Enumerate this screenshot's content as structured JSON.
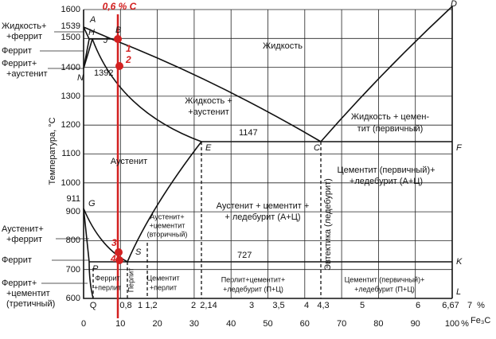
{
  "y_axis": {
    "title": "Температура, °С",
    "ticks": [
      "1600",
      "1539",
      "1500",
      "1400",
      "1300",
      "1200",
      "1100",
      "1000",
      "911",
      "900",
      "800",
      "700",
      "600"
    ]
  },
  "x_axis_carbon": {
    "ticks": [
      "Q",
      "0,8",
      "1",
      "1,2",
      "2",
      "2,14",
      "3",
      "3,5",
      "4",
      "4,3",
      "5",
      "6",
      "6,67",
      "7"
    ],
    "unit": "%"
  },
  "x_axis_fe3c": {
    "ticks": [
      "0",
      "10",
      "20",
      "30",
      "40",
      "50",
      "60",
      "70",
      "80",
      "90",
      "100"
    ],
    "unit": "%",
    "label": "Fe₃C"
  },
  "points": [
    "A",
    "B",
    "H",
    "J",
    "N",
    "D",
    "E",
    "C",
    "F",
    "G",
    "P",
    "S",
    "K",
    "L"
  ],
  "isotherms": [
    "1392",
    "1147",
    "727"
  ],
  "regions": [
    [
      "Жидкость"
    ],
    [
      "Жидкость +",
      "+аустенит"
    ],
    [
      "Жидкость + цемен-",
      "тит (первичный)"
    ],
    [
      "Аустенит"
    ],
    [
      "Цементит (первичный)+",
      "+ледебурит (А+Ц)"
    ],
    [
      "Аустенит + цементит +",
      "+ ледебурит (А+Ц)"
    ],
    [
      "Эвтектика (ледебурит)"
    ],
    [
      "Аустенит+",
      "+цементит",
      "(вторичный)"
    ],
    [
      "Феррит",
      "+перлит"
    ],
    [
      "Перлит"
    ],
    [
      "Цементит",
      "+перлит"
    ],
    [
      "Перлит+цементит+",
      "+ледебурит (П+Ц)"
    ],
    [
      "Цементит (первичный)+",
      "+ледебурит (П+Ц)"
    ]
  ],
  "side_labels": [
    [
      "Жидкость+",
      "+феррит"
    ],
    [
      "Феррит"
    ],
    [
      "Феррит+",
      "+аустенит"
    ],
    [
      "Аустенит+",
      "+феррит"
    ],
    [
      "Феррит"
    ],
    [
      "Феррит+",
      "+цементит",
      "(третичный)"
    ]
  ],
  "alloy": {
    "label": "0,6 % С",
    "points": [
      "1",
      "2",
      "3",
      "4"
    ]
  }
}
